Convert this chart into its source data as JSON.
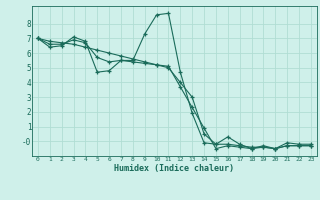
{
  "title": "",
  "xlabel": "Humidex (Indice chaleur)",
  "ylabel": "",
  "bg_color": "#cff0ea",
  "grid_color": "#b0ddd4",
  "line_color": "#1a6b5a",
  "marker": "+",
  "series": [
    [
      7.0,
      6.4,
      6.5,
      7.1,
      6.8,
      4.7,
      4.8,
      5.5,
      5.5,
      7.3,
      8.6,
      8.7,
      4.7,
      1.9,
      -0.1,
      -0.2,
      0.3,
      -0.2,
      -0.5,
      -0.3,
      -0.5,
      -0.1,
      -0.2,
      -0.2
    ],
    [
      7.0,
      6.6,
      6.6,
      6.9,
      6.7,
      5.7,
      5.4,
      5.5,
      5.4,
      5.3,
      5.2,
      5.1,
      3.7,
      2.3,
      0.9,
      -0.5,
      -0.3,
      -0.4,
      -0.5,
      -0.4,
      -0.5,
      -0.3,
      -0.3,
      -0.3
    ],
    [
      7.0,
      6.8,
      6.7,
      6.6,
      6.4,
      6.2,
      6.0,
      5.8,
      5.6,
      5.4,
      5.2,
      5.0,
      4.0,
      3.0,
      0.5,
      -0.2,
      -0.2,
      -0.3,
      -0.4,
      -0.4,
      -0.5,
      -0.3,
      -0.3,
      -0.3
    ]
  ],
  "xlim": [
    -0.5,
    23.5
  ],
  "ylim": [
    -1.0,
    9.2
  ],
  "yticks": [
    0,
    1,
    2,
    3,
    4,
    5,
    6,
    7,
    8
  ],
  "ytick_labels": [
    "-0",
    "1",
    "2",
    "3",
    "4",
    "5",
    "6",
    "7",
    "8"
  ],
  "xticks": [
    0,
    1,
    2,
    3,
    4,
    5,
    6,
    7,
    8,
    9,
    10,
    11,
    12,
    13,
    14,
    15,
    16,
    17,
    18,
    19,
    20,
    21,
    22,
    23
  ]
}
